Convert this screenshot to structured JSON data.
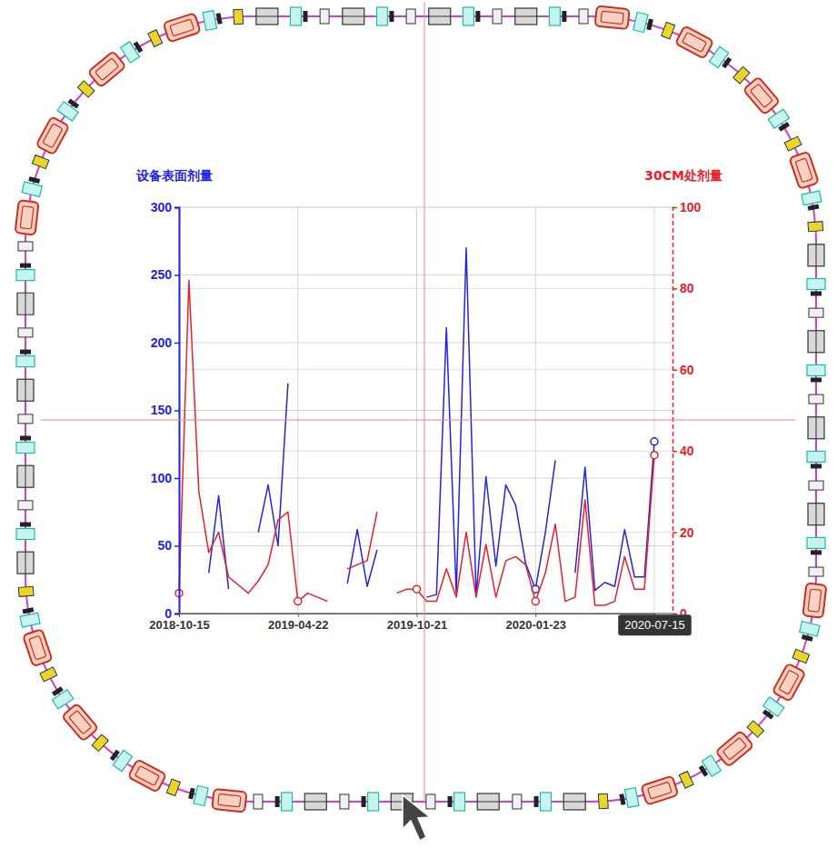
{
  "chart_data": {
    "type": "line",
    "categories": [
      "2018-10-15",
      null,
      null,
      null,
      null,
      null,
      null,
      null,
      null,
      null,
      null,
      null,
      "2019-04-22",
      null,
      null,
      null,
      null,
      null,
      null,
      null,
      null,
      null,
      null,
      null,
      "2019-10-21",
      null,
      null,
      null,
      null,
      null,
      null,
      null,
      null,
      null,
      null,
      null,
      "2020-01-23",
      null,
      null,
      null,
      null,
      null,
      null,
      null,
      null,
      null,
      null,
      null,
      "2020-07-15"
    ],
    "y_label": "设备表面剂量",
    "y2_label": "30CM处剂量",
    "ylim": [
      0,
      300
    ],
    "yticks": [
      0,
      50,
      100,
      150,
      200,
      250,
      300
    ],
    "y2lim": [
      0,
      100
    ],
    "y2ticks": [
      0,
      20,
      40,
      60,
      80,
      100
    ],
    "grid": true,
    "series": [
      {
        "color": "#2424e0",
        "marker": "circle",
        "values": [
          null,
          null,
          null,
          30,
          87,
          18,
          null,
          null,
          60,
          95,
          50,
          170,
          null,
          null,
          null,
          null,
          null,
          22,
          62,
          20,
          47,
          null,
          null,
          null,
          null,
          12,
          14,
          211,
          15,
          270,
          13,
          101,
          35,
          95,
          80,
          37,
          18,
          60,
          113,
          null,
          30,
          108,
          17,
          23,
          20,
          62,
          27,
          27,
          127
        ]
      },
      {
        "color": "#e8202a",
        "marker": "circle",
        "axis": "y2",
        "values": [
          5,
          82,
          30,
          15,
          20,
          9,
          7,
          5,
          8,
          12,
          23,
          25,
          3,
          5,
          4,
          3,
          null,
          11,
          12,
          13,
          25,
          null,
          5,
          6,
          6,
          3,
          3,
          11,
          4,
          20,
          4,
          17,
          4,
          13,
          14,
          12,
          3,
          10,
          22,
          3,
          4,
          28,
          2,
          2,
          3,
          14,
          6,
          6,
          39
        ]
      }
    ]
  }
}
